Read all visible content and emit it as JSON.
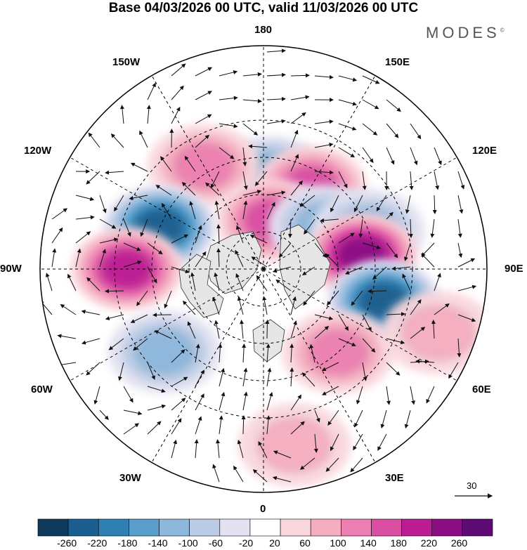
{
  "title": "Base 04/03/2026 00 UTC, valid 11/03/2026 00 UTC",
  "brand": "MODES",
  "brand_mark": "©",
  "longitude_labels": {
    "top": "180",
    "bottom": "0",
    "left": "90W",
    "right": "90E",
    "upper_left_1": "150W",
    "upper_left_2": "120W",
    "lower_left_1": "60W",
    "lower_left_2": "30W",
    "upper_right_1": "150E",
    "upper_right_2": "120E",
    "lower_right_1": "60E",
    "lower_right_2": "30E"
  },
  "reference_vector": {
    "label": "30"
  },
  "colorbar": {
    "ticks": [
      "-260",
      "-220",
      "-180",
      "-140",
      "-100",
      "-60",
      "-20",
      "20",
      "60",
      "100",
      "140",
      "180",
      "220",
      "260"
    ],
    "colors": [
      "#0f3a5c",
      "#1a5f8f",
      "#2f7fb3",
      "#5a9fcb",
      "#8db7db",
      "#bccbe6",
      "#e2e2f0",
      "#ffffff",
      "#f9d6dc",
      "#f4aec0",
      "#ec7fb1",
      "#d94ea2",
      "#bc1c93",
      "#8c0e85",
      "#5e0a74"
    ]
  },
  "anomalies": [
    {
      "name": "anomaly-low-180",
      "value": -140,
      "lon": 175,
      "lat": 53
    },
    {
      "name": "anomaly-high-160E",
      "value": 140,
      "lon": 150,
      "lat": 52
    },
    {
      "name": "anomaly-high-140W",
      "value": 100,
      "lon": -150,
      "lat": 42
    },
    {
      "name": "anomaly-high-bering",
      "value": 140,
      "lon": 170,
      "lat": 70
    },
    {
      "name": "anomaly-low-siberia",
      "value": -100,
      "lon": 125,
      "lat": 60
    },
    {
      "name": "anomaly-low-siberia-e",
      "value": -100,
      "lon": 110,
      "lat": 45
    },
    {
      "name": "anomaly-low-canada",
      "value": -220,
      "lon": -112,
      "lat": 45
    },
    {
      "name": "anomaly-high-central-asia",
      "value": 220,
      "lon": 98,
      "lat": 50
    },
    {
      "name": "anomaly-high-pacific-sw",
      "value": 180,
      "lon": -90,
      "lat": 35
    },
    {
      "name": "anomaly-low-kazakh",
      "value": -220,
      "lon": 75,
      "lat": 40
    },
    {
      "name": "anomaly-high-europe",
      "value": 100,
      "lon": 42,
      "lat": 45
    },
    {
      "name": "anomaly-low-atlantic",
      "value": -100,
      "lon": -50,
      "lat": 38
    },
    {
      "name": "anomaly-high-sahara",
      "value": 60,
      "lon": 10,
      "lat": 18
    },
    {
      "name": "anomaly-high-arabia",
      "value": 60,
      "lon": 70,
      "lat": 15
    }
  ]
}
